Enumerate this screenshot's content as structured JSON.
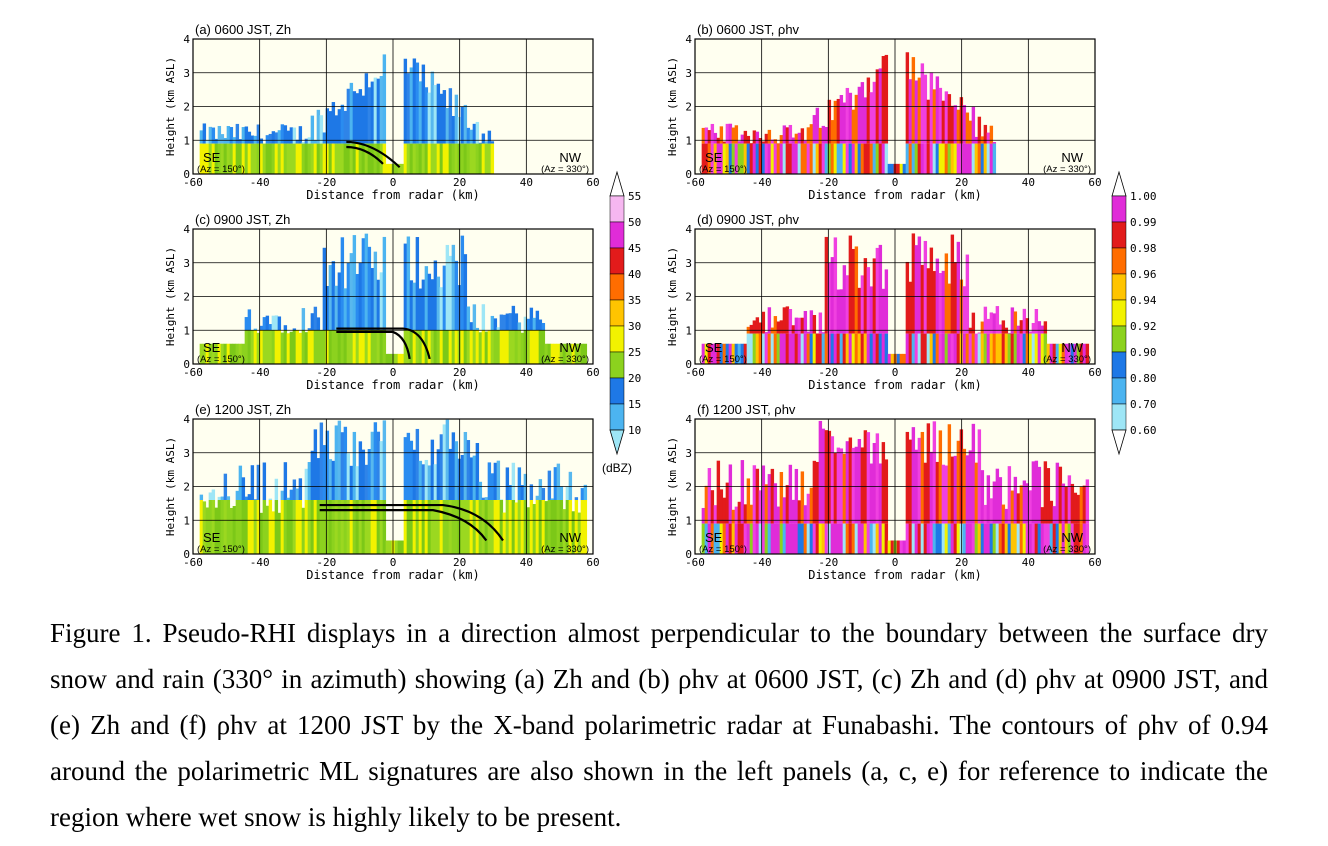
{
  "figure": {
    "panels": [
      {
        "id": "a",
        "title": "(a) 0600 JST, Zh",
        "variable": "Zh",
        "time": "0600 JST",
        "contour": "c0600"
      },
      {
        "id": "b",
        "title": "(b) 0600 JST, ρhv",
        "variable": "rhohv",
        "time": "0600 JST"
      },
      {
        "id": "c",
        "title": "(c) 0900 JST, Zh",
        "variable": "Zh",
        "time": "0900 JST",
        "contour": "c0900"
      },
      {
        "id": "d",
        "title": "(d) 0900 JST, ρhv",
        "variable": "rhohv",
        "time": "0900 JST"
      },
      {
        "id": "e",
        "title": "(e) 1200 JST, Zh",
        "variable": "Zh",
        "time": "1200 JST",
        "contour": "c1200"
      },
      {
        "id": "f",
        "title": "(f) 1200 JST, ρhv",
        "variable": "rhohv",
        "time": "1200 JST"
      }
    ],
    "axes": {
      "xlabel": "Distance from radar (km)",
      "ylabel": "Height (km ASL)",
      "xticks": [
        "-60",
        "-40",
        "-20",
        "0",
        "20",
        "40",
        "60"
      ],
      "yticks": [
        "0",
        "1",
        "2",
        "3",
        "4"
      ],
      "xlim": [
        -60,
        60
      ],
      "ylim": [
        0,
        4
      ]
    },
    "direction_labels": {
      "left": "SE",
      "left_az": "(Az = 150°)",
      "right": "NW",
      "right_az": "(Az = 330°)"
    },
    "colorbar_zh": {
      "unit": "(dBZ)",
      "labels": [
        "55",
        "50",
        "45",
        "40",
        "35",
        "30",
        "25",
        "20",
        "15",
        "10"
      ],
      "colors": [
        "#ffffff",
        "#f6b7f0",
        "#e02cd8",
        "#e21b1b",
        "#ff6d00",
        "#ffc400",
        "#f2f200",
        "#8cd21e",
        "#1e78e6",
        "#4cb4f0",
        "#9ee6f6"
      ]
    },
    "colorbar_rhohv": {
      "labels": [
        "1.00",
        "0.99",
        "0.98",
        "0.96",
        "0.94",
        "0.92",
        "0.90",
        "0.80",
        "0.70",
        "0.60"
      ],
      "colors": [
        "#ffffff",
        "#e02cd8",
        "#e21b1b",
        "#ff6d00",
        "#ffc400",
        "#f2f200",
        "#8cd21e",
        "#1e78e6",
        "#4cb4f0",
        "#9ee6f6",
        "#ffffff"
      ]
    }
  },
  "caption": {
    "text": "Figure 1. Pseudo-RHI displays in a direction almost perpendicular to the boundary between the surface dry snow and rain (330° in azimuth) showing (a) Zh and (b) ρhv at 0600 JST, (c) Zh and (d) ρhv at 0900 JST, and (e) Zh and (f) ρhv at 1200 JST by the X-band polarimetric radar at Funabashi. The contours of ρhv of 0.94 around the polarimetric ML signatures are also shown in the left panels (a, c, e) for reference to indicate the region where wet snow is highly likely to be present."
  }
}
